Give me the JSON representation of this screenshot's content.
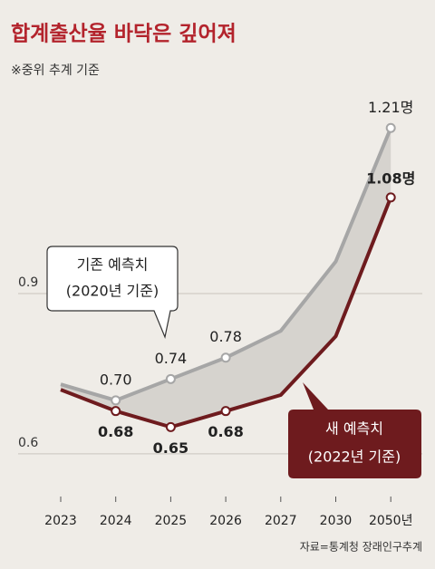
{
  "chart_data": {
    "type": "line",
    "title": "합계출산율 바닥은 깊어져",
    "subtitle": "※중위 추계 기준",
    "source": "자료=통계청 장래인구추계",
    "categories": [
      "2023",
      "2024",
      "2025",
      "2026",
      "2027",
      "2030",
      "2050년"
    ],
    "series": [
      {
        "name": "기존 예측치",
        "basis": "(2020년 기준)",
        "color": "#a6a6a6",
        "values": [
          0.73,
          0.7,
          0.74,
          0.78,
          0.83,
          0.96,
          1.21
        ],
        "value_labels": [
          null,
          "0.70",
          "0.74",
          "0.78",
          null,
          null,
          "1.21명"
        ]
      },
      {
        "name": "새 예측치",
        "basis": "(2022년 기준)",
        "color": "#6e1b1e",
        "values": [
          0.72,
          0.68,
          0.65,
          0.68,
          0.71,
          0.82,
          1.08
        ],
        "value_labels": [
          null,
          "0.68",
          "0.65",
          "0.68",
          null,
          null,
          "1.08명"
        ]
      }
    ],
    "ylim": [
      0.52,
      1.28
    ],
    "yticks": [
      0.6,
      0.9
    ],
    "grid": true
  }
}
